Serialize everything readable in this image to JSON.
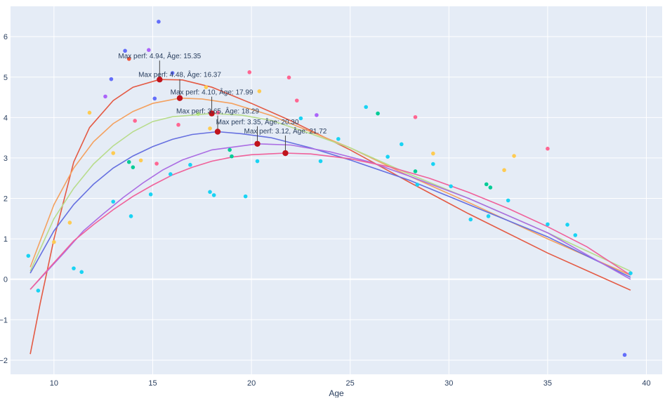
{
  "chart_data": {
    "type": "scatter",
    "xlabel": "Age",
    "ylabel": "",
    "xlim": [
      7.8,
      40.8
    ],
    "ylim": [
      -2.35,
      6.75
    ],
    "xticks": [
      10,
      15,
      20,
      25,
      30,
      35,
      40
    ],
    "yticks": [
      -2,
      -1,
      0,
      1,
      2,
      3,
      4,
      5,
      6
    ],
    "xtick_labels": [
      "10",
      "15",
      "20",
      "25",
      "30",
      "35",
      "40"
    ],
    "ytick_labels": [
      "−2",
      "−1",
      "0",
      "1",
      "2",
      "3",
      "4",
      "5",
      "6"
    ],
    "grid": true,
    "legend": "none",
    "colors": {
      "plot_bg": "#e5ecf6",
      "grid": "#ffffff",
      "peak_marker": "#c0141c",
      "text": "#2a3f5f"
    },
    "annotations": [
      {
        "text": "Max perf: 4.94, Âge: 15.35"
      },
      {
        "text": "Max perf: 4.48, Âge: 16.37"
      },
      {
        "text": "Max perf: 4.10, Âge: 17.99"
      },
      {
        "text": "Max perf: 3.65, Âge: 18.29"
      },
      {
        "text": "Max perf: 3.35, Âge: 20.30"
      },
      {
        "text": "Max perf: 3.12, Âge: 21.72"
      }
    ],
    "curves": [
      {
        "color": "#e45a44",
        "peak": {
          "x": 15.35,
          "y": 4.94
        },
        "x": [
          8.8,
          9.3,
          10.0,
          11.0,
          11.8,
          13.0,
          14.0,
          15.35,
          16.5,
          18.0,
          20.0,
          22.0,
          25.0,
          28.0,
          31.0,
          35.0,
          39.2
        ],
        "y": [
          -1.85,
          -0.6,
          1.0,
          2.9,
          3.75,
          4.42,
          4.75,
          4.94,
          4.93,
          4.75,
          4.35,
          3.92,
          3.2,
          2.4,
          1.62,
          0.65,
          -0.27
        ]
      },
      {
        "color": "#f4a15f",
        "peak": {
          "x": 16.37,
          "y": 4.48
        },
        "x": [
          8.8,
          10.0,
          11.0,
          12.0,
          13.0,
          14.0,
          15.0,
          16.37,
          17.5,
          19.0,
          21.0,
          23.0,
          25.0,
          28.0,
          31.0,
          35.0,
          39.2
        ],
        "y": [
          0.3,
          1.85,
          2.75,
          3.4,
          3.85,
          4.15,
          4.35,
          4.48,
          4.46,
          4.35,
          4.05,
          3.65,
          3.25,
          2.55,
          1.9,
          1.0,
          0.1
        ]
      },
      {
        "color": "#b8dc8c",
        "peak": {
          "x": 17.99,
          "y": 4.1
        },
        "x": [
          8.8,
          10.0,
          11.0,
          12.0,
          13.0,
          14.0,
          15.0,
          16.0,
          17.99,
          19.5,
          21.0,
          23.0,
          25.0,
          28.0,
          31.0,
          35.0,
          39.2
        ],
        "y": [
          0.2,
          1.5,
          2.25,
          2.85,
          3.3,
          3.65,
          3.9,
          4.02,
          4.1,
          4.06,
          3.93,
          3.6,
          3.25,
          2.6,
          2.0,
          1.15,
          0.2
        ]
      },
      {
        "color": "#6670e0",
        "peak": {
          "x": 18.29,
          "y": 3.65
        },
        "x": [
          8.8,
          10.0,
          11.0,
          12.0,
          13.0,
          14.0,
          15.0,
          16.0,
          17.0,
          18.29,
          19.5,
          21.0,
          23.0,
          25.0,
          28.0,
          31.0,
          35.0,
          39.2
        ],
        "y": [
          0.15,
          1.2,
          1.85,
          2.35,
          2.75,
          3.05,
          3.28,
          3.46,
          3.58,
          3.65,
          3.6,
          3.5,
          3.25,
          2.95,
          2.45,
          1.85,
          1.05,
          0.05
        ]
      },
      {
        "color": "#ab6de3",
        "peak": {
          "x": 20.3,
          "y": 3.35
        },
        "x": [
          8.8,
          9.5,
          10.5,
          11.5,
          12.5,
          13.5,
          14.5,
          15.5,
          16.5,
          18.0,
          20.3,
          22.0,
          24.0,
          26.0,
          28.0,
          31.0,
          35.0,
          39.2
        ],
        "y": [
          -0.25,
          0.12,
          0.65,
          1.2,
          1.62,
          2.02,
          2.38,
          2.7,
          2.95,
          3.2,
          3.35,
          3.32,
          3.15,
          2.9,
          2.55,
          2.0,
          1.15,
          0.0
        ]
      },
      {
        "color": "#f0619a",
        "peak": {
          "x": 21.72,
          "y": 3.12
        },
        "x": [
          8.8,
          9.8,
          11.0,
          12.0,
          13.0,
          14.0,
          15.0,
          16.0,
          17.0,
          18.0,
          19.0,
          20.0,
          21.72,
          23.0,
          25.0,
          27.0,
          29.0,
          31.0,
          33.0,
          35.0,
          37.0,
          39.2
        ],
        "y": [
          -0.25,
          0.3,
          0.95,
          1.35,
          1.72,
          2.05,
          2.33,
          2.58,
          2.77,
          2.92,
          3.02,
          3.08,
          3.12,
          3.1,
          2.98,
          2.78,
          2.5,
          2.15,
          1.75,
          1.3,
          0.8,
          0.1
        ]
      }
    ],
    "points": [
      {
        "x": 8.7,
        "y": 0.58,
        "color": "#19d3f3"
      },
      {
        "x": 9.2,
        "y": -0.28,
        "color": "#19d3f3"
      },
      {
        "x": 10.0,
        "y": 0.92,
        "color": "#fecb52"
      },
      {
        "x": 10.8,
        "y": 1.4,
        "color": "#fecb52"
      },
      {
        "x": 11.0,
        "y": 0.27,
        "color": "#19d3f3"
      },
      {
        "x": 11.4,
        "y": 0.18,
        "color": "#19d3f3"
      },
      {
        "x": 11.8,
        "y": 4.12,
        "color": "#fecb52"
      },
      {
        "x": 12.6,
        "y": 4.52,
        "color": "#ab63fa"
      },
      {
        "x": 12.9,
        "y": 4.95,
        "color": "#636efa"
      },
      {
        "x": 13.0,
        "y": 3.12,
        "color": "#fecb52"
      },
      {
        "x": 13.0,
        "y": 1.92,
        "color": "#19d3f3"
      },
      {
        "x": 13.6,
        "y": 5.65,
        "color": "#636efa"
      },
      {
        "x": 13.8,
        "y": 5.45,
        "color": "#ef553b"
      },
      {
        "x": 13.8,
        "y": 2.9,
        "color": "#00cc96"
      },
      {
        "x": 13.9,
        "y": 1.56,
        "color": "#19d3f3"
      },
      {
        "x": 14.0,
        "y": 2.77,
        "color": "#00cc96"
      },
      {
        "x": 14.1,
        "y": 3.92,
        "color": "#ff6692"
      },
      {
        "x": 14.4,
        "y": 2.94,
        "color": "#fecb52"
      },
      {
        "x": 14.8,
        "y": 5.67,
        "color": "#ab63fa"
      },
      {
        "x": 14.9,
        "y": 2.1,
        "color": "#19d3f3"
      },
      {
        "x": 15.1,
        "y": 4.47,
        "color": "#636efa"
      },
      {
        "x": 15.2,
        "y": 2.86,
        "color": "#ff6692"
      },
      {
        "x": 15.3,
        "y": 6.37,
        "color": "#636efa"
      },
      {
        "x": 15.9,
        "y": 2.6,
        "color": "#19d3f3"
      },
      {
        "x": 16.0,
        "y": 5.1,
        "color": "#636efa"
      },
      {
        "x": 16.3,
        "y": 3.82,
        "color": "#ff6692"
      },
      {
        "x": 16.9,
        "y": 2.83,
        "color": "#19d3f3"
      },
      {
        "x": 17.3,
        "y": 4.09,
        "color": "#b6e880"
      },
      {
        "x": 17.7,
        "y": 4.75,
        "color": "#fecb52"
      },
      {
        "x": 17.9,
        "y": 3.73,
        "color": "#fecb52"
      },
      {
        "x": 17.9,
        "y": 2.16,
        "color": "#19d3f3"
      },
      {
        "x": 18.1,
        "y": 2.08,
        "color": "#19d3f3"
      },
      {
        "x": 18.3,
        "y": 4.12,
        "color": "#ff6692"
      },
      {
        "x": 18.9,
        "y": 3.2,
        "color": "#00cc96"
      },
      {
        "x": 19.0,
        "y": 3.04,
        "color": "#00cc96"
      },
      {
        "x": 19.7,
        "y": 2.05,
        "color": "#19d3f3"
      },
      {
        "x": 19.9,
        "y": 5.12,
        "color": "#ff6692"
      },
      {
        "x": 20.3,
        "y": 2.92,
        "color": "#19d3f3"
      },
      {
        "x": 20.4,
        "y": 4.65,
        "color": "#fecb52"
      },
      {
        "x": 21.9,
        "y": 4.99,
        "color": "#ff6692"
      },
      {
        "x": 22.3,
        "y": 4.42,
        "color": "#ff6692"
      },
      {
        "x": 22.5,
        "y": 3.98,
        "color": "#19d3f3"
      },
      {
        "x": 23.3,
        "y": 4.06,
        "color": "#ab63fa"
      },
      {
        "x": 23.5,
        "y": 2.92,
        "color": "#19d3f3"
      },
      {
        "x": 24.4,
        "y": 3.47,
        "color": "#19d3f3"
      },
      {
        "x": 25.8,
        "y": 4.26,
        "color": "#19d3f3"
      },
      {
        "x": 26.4,
        "y": 4.1,
        "color": "#00cc96"
      },
      {
        "x": 26.9,
        "y": 3.03,
        "color": "#19d3f3"
      },
      {
        "x": 27.6,
        "y": 3.34,
        "color": "#19d3f3"
      },
      {
        "x": 28.3,
        "y": 4.01,
        "color": "#ff6692"
      },
      {
        "x": 28.3,
        "y": 2.67,
        "color": "#00cc96"
      },
      {
        "x": 28.4,
        "y": 2.34,
        "color": "#19d3f3"
      },
      {
        "x": 29.2,
        "y": 3.11,
        "color": "#fecb52"
      },
      {
        "x": 29.2,
        "y": 2.85,
        "color": "#19d3f3"
      },
      {
        "x": 30.1,
        "y": 2.3,
        "color": "#19d3f3"
      },
      {
        "x": 31.1,
        "y": 1.48,
        "color": "#19d3f3"
      },
      {
        "x": 31.9,
        "y": 2.35,
        "color": "#00cc96"
      },
      {
        "x": 32.0,
        "y": 1.56,
        "color": "#19d3f3"
      },
      {
        "x": 32.1,
        "y": 2.27,
        "color": "#00cc96"
      },
      {
        "x": 32.8,
        "y": 2.7,
        "color": "#fecb52"
      },
      {
        "x": 33.0,
        "y": 1.95,
        "color": "#19d3f3"
      },
      {
        "x": 33.3,
        "y": 3.05,
        "color": "#fecb52"
      },
      {
        "x": 35.0,
        "y": 3.23,
        "color": "#ff6692"
      },
      {
        "x": 35.0,
        "y": 1.36,
        "color": "#19d3f3"
      },
      {
        "x": 36.0,
        "y": 1.35,
        "color": "#19d3f3"
      },
      {
        "x": 36.4,
        "y": 1.09,
        "color": "#19d3f3"
      },
      {
        "x": 38.9,
        "y": -1.87,
        "color": "#636efa"
      },
      {
        "x": 39.2,
        "y": 0.15,
        "color": "#19d3f3"
      }
    ]
  }
}
